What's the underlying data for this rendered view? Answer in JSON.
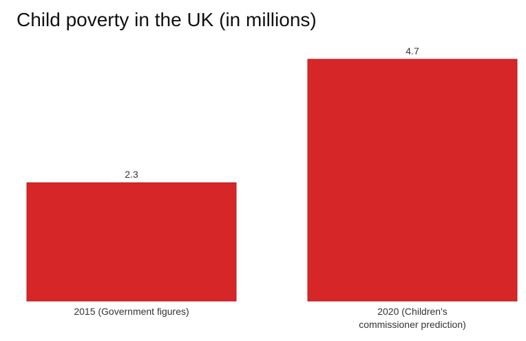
{
  "chart_data": {
    "type": "bar",
    "title": "Child poverty in the UK (in millions)",
    "categories": [
      [
        "2015 (Government figures)"
      ],
      [
        "2020 (Children's",
        "commissioner prediction)"
      ]
    ],
    "values": [
      2.3,
      4.7
    ],
    "value_labels": [
      "2.3",
      "4.7"
    ],
    "xlabel": "",
    "ylabel": "",
    "ylim": [
      0,
      4.7
    ],
    "grid": false,
    "legend": "none",
    "bar_color": "#d62628",
    "bar_stroke": "#b51e20"
  }
}
